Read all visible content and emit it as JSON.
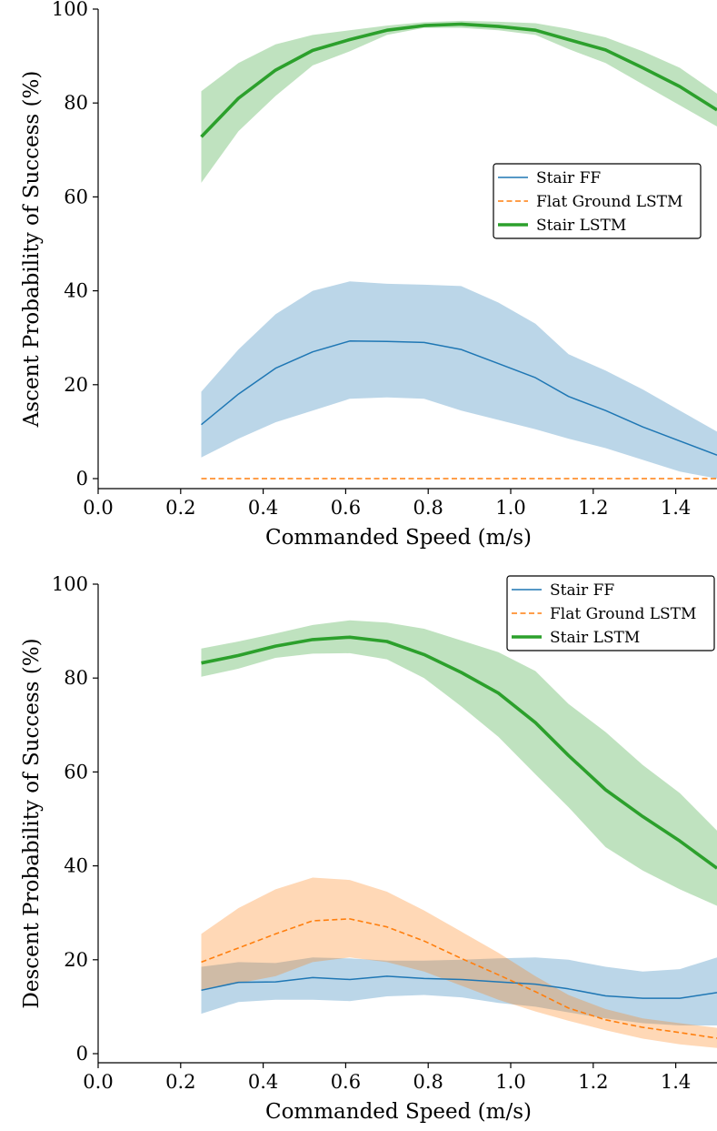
{
  "chart_data": [
    {
      "type": "line",
      "xlabel": "Commanded Speed (m/s)",
      "ylabel": "Ascent Probability of Success (%)",
      "xlim": [
        0.0,
        1.5
      ],
      "ylim": [
        0,
        100
      ],
      "xticks": [
        "0.0",
        "0.2",
        "0.4",
        "0.6",
        "0.8",
        "1.0",
        "1.2",
        "1.4"
      ],
      "yticks": [
        "0",
        "20",
        "40",
        "60",
        "80",
        "100"
      ],
      "grid": false,
      "legend_position": "center-right",
      "series": [
        {
          "name": "Stair FF",
          "style": "solid-thin",
          "color": "#1f77b4",
          "x": [
            0.25,
            0.34,
            0.43,
            0.52,
            0.61,
            0.7,
            0.79,
            0.88,
            0.97,
            1.06,
            1.14,
            1.23,
            1.32,
            1.41,
            1.5
          ],
          "y": [
            11.5,
            18,
            23.5,
            27,
            29.3,
            29.2,
            29,
            27.5,
            24.5,
            21.5,
            17.5,
            14.5,
            11,
            8,
            5
          ],
          "lower": [
            4.5,
            8.5,
            12,
            14.5,
            17,
            17.3,
            17,
            14.5,
            12.5,
            10.5,
            8.5,
            6.5,
            4,
            1.5,
            0
          ],
          "upper": [
            18.5,
            27.5,
            35,
            40,
            42,
            41.5,
            41.3,
            41,
            37.5,
            33,
            26.5,
            23,
            19,
            14.5,
            10
          ]
        },
        {
          "name": "Flat Ground LSTM",
          "style": "dashed",
          "color": "#ff7f0e",
          "x": [
            0.25,
            0.34,
            0.43,
            0.52,
            0.61,
            0.7,
            0.79,
            0.88,
            0.97,
            1.06,
            1.14,
            1.23,
            1.32,
            1.41,
            1.5
          ],
          "y": [
            0,
            0,
            0,
            0,
            0,
            0,
            0,
            0,
            0,
            0,
            0,
            0,
            0,
            0,
            0
          ],
          "lower": [
            0,
            0,
            0,
            0,
            0,
            0,
            0,
            0,
            0,
            0,
            0,
            0,
            0,
            0,
            0
          ],
          "upper": [
            0,
            0,
            0,
            0,
            0,
            0,
            0,
            0,
            0,
            0,
            0,
            0,
            0,
            0,
            0
          ]
        },
        {
          "name": "Stair LSTM",
          "style": "solid-thick",
          "color": "#2ca02c",
          "x": [
            0.25,
            0.34,
            0.43,
            0.52,
            0.61,
            0.7,
            0.79,
            0.88,
            0.97,
            1.06,
            1.14,
            1.23,
            1.32,
            1.41,
            1.5
          ],
          "y": [
            72.8,
            81,
            87,
            91.2,
            93.5,
            95.5,
            96.5,
            96.8,
            96.3,
            95.5,
            93.5,
            91.3,
            87.5,
            83.5,
            78.5
          ],
          "lower": [
            63,
            74,
            81.5,
            88,
            91,
            94.5,
            96,
            96,
            95.5,
            94.5,
            91.5,
            88.5,
            84,
            79.5,
            75
          ],
          "upper": [
            82.5,
            88.5,
            92.5,
            94.5,
            95.5,
            96.5,
            97.2,
            97.5,
            97.3,
            97,
            95.8,
            94,
            91,
            87.5,
            82
          ]
        }
      ]
    },
    {
      "type": "line",
      "xlabel": "Commanded Speed (m/s)",
      "ylabel": "Descent Probability of Success (%)",
      "xlim": [
        0.0,
        1.5
      ],
      "ylim": [
        0,
        100
      ],
      "xticks": [
        "0.0",
        "0.2",
        "0.4",
        "0.6",
        "0.8",
        "1.0",
        "1.2",
        "1.4"
      ],
      "yticks": [
        "0",
        "20",
        "40",
        "60",
        "80",
        "100"
      ],
      "grid": false,
      "legend_position": "top-right",
      "series": [
        {
          "name": "Stair FF",
          "style": "solid-thin",
          "color": "#1f77b4",
          "x": [
            0.25,
            0.34,
            0.43,
            0.52,
            0.61,
            0.7,
            0.79,
            0.88,
            0.97,
            1.06,
            1.14,
            1.23,
            1.32,
            1.41,
            1.5
          ],
          "y": [
            13.5,
            15.2,
            15.3,
            16.2,
            15.8,
            16.5,
            16,
            15.8,
            15.3,
            14.8,
            13.8,
            12.3,
            11.8,
            11.8,
            13
          ],
          "lower": [
            8.5,
            11,
            11.5,
            11.5,
            11.2,
            12.2,
            12.5,
            12,
            10.8,
            10,
            8.8,
            7.5,
            6.5,
            6,
            6
          ],
          "upper": [
            18.5,
            19.5,
            19.3,
            20.5,
            20.3,
            19.8,
            19.8,
            20,
            20.3,
            20.5,
            20,
            18.5,
            17.5,
            18,
            20.5
          ]
        },
        {
          "name": "Flat Ground LSTM",
          "style": "dashed",
          "color": "#ff7f0e",
          "x": [
            0.25,
            0.34,
            0.43,
            0.52,
            0.61,
            0.7,
            0.79,
            0.88,
            0.97,
            1.06,
            1.14,
            1.23,
            1.32,
            1.41,
            1.5
          ],
          "y": [
            19.5,
            22.5,
            25.5,
            28.3,
            28.7,
            27,
            24,
            20.3,
            16.8,
            13.2,
            9.7,
            7.2,
            5.6,
            4.5,
            3.3
          ],
          "lower": [
            13.5,
            15,
            16.5,
            19.5,
            20.5,
            19.5,
            17.5,
            14.5,
            11.5,
            9,
            7,
            5,
            3.2,
            2,
            1.2
          ],
          "upper": [
            25.5,
            31,
            35,
            37.5,
            37,
            34.5,
            30.5,
            26,
            21.5,
            16.5,
            12.5,
            9.5,
            7.5,
            6.5,
            5.5
          ]
        },
        {
          "name": "Stair LSTM",
          "style": "solid-thick",
          "color": "#2ca02c",
          "x": [
            0.25,
            0.34,
            0.43,
            0.52,
            0.61,
            0.7,
            0.79,
            0.88,
            0.97,
            1.06,
            1.14,
            1.23,
            1.32,
            1.41,
            1.5
          ],
          "y": [
            83.2,
            84.8,
            86.8,
            88.2,
            88.7,
            87.8,
            85,
            81.2,
            76.8,
            70.5,
            63.5,
            56.2,
            50.5,
            45.3,
            39.5
          ],
          "lower": [
            80.3,
            82,
            84.3,
            85.2,
            85.3,
            84,
            80,
            74,
            67.5,
            59.5,
            52.5,
            44,
            39,
            35,
            31.5
          ],
          "upper": [
            86.3,
            87.8,
            89.5,
            91.3,
            92.3,
            91.8,
            90.5,
            88,
            85.5,
            81.5,
            74.5,
            68.5,
            61.5,
            55.5,
            47.5
          ]
        }
      ]
    }
  ]
}
